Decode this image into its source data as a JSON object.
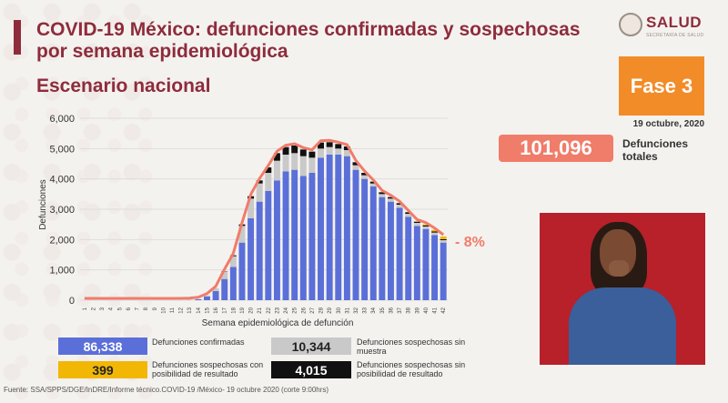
{
  "header": {
    "title": "COVID-19 México: defunciones confirmadas y sospechosas por semana epidemiológica",
    "subtitle": "Escenario nacional",
    "logo_text": "SALUD",
    "logo_subtext": "SECRETARÍA DE SALUD"
  },
  "side": {
    "phase": "Fase 3",
    "date": "19 octubre, 2020",
    "total_value": "101,096",
    "total_label": "Defunciones totales",
    "change_label": "- 8%"
  },
  "legend": {
    "confirmed_value": "86,338",
    "confirmed_label": "Defunciones confirmadas",
    "suspect_nosample_value": "10,344",
    "suspect_nosample_label": "Defunciones sospechosas sin muestra",
    "suspect_possible_value": "399",
    "suspect_possible_label": "Defunciones sospechosas con posibilidad de resultado",
    "suspect_impossible_value": "4,015",
    "suspect_impossible_label": "Defunciones sospechosas sin posibilidad de resultado"
  },
  "footer": "Fuente: SSA/SPPS/DGE/InDRE/Informe técnico.COVID-19 /México- 19 octubre 2020 (corte 9:00hrs)",
  "colors": {
    "confirmed": "#5a6fd8",
    "no_sample": "#c9c9c9",
    "impossible": "#111111",
    "possible": "#f2b705",
    "total_line": "#f07c6a",
    "title": "#8e2c3c"
  },
  "chart_data": {
    "type": "bar",
    "stacked": true,
    "xlabel": "Semana epidemiológica de defunción",
    "ylabel": "Defunciones",
    "ylim": [
      0,
      6000
    ],
    "yticks": [
      0,
      1000,
      2000,
      3000,
      4000,
      5000,
      6000
    ],
    "ytick_labels": [
      "0",
      "1,000",
      "2,000",
      "3,000",
      "4,000",
      "5,000",
      "6,000"
    ],
    "categories": [
      "1",
      "2",
      "3",
      "4",
      "5",
      "6",
      "7",
      "8",
      "9",
      "10",
      "11",
      "12",
      "13",
      "14",
      "15",
      "16",
      "17",
      "18",
      "19",
      "20",
      "21",
      "22",
      "23",
      "24",
      "25",
      "26",
      "27",
      "28",
      "29",
      "30",
      "31",
      "32",
      "33",
      "34",
      "35",
      "36",
      "37",
      "38",
      "39",
      "40",
      "41",
      "42"
    ],
    "series": [
      {
        "name": "Defunciones confirmadas",
        "values": [
          0,
          0,
          0,
          0,
          0,
          0,
          0,
          0,
          0,
          0,
          0,
          0,
          5,
          30,
          120,
          300,
          700,
          1100,
          1900,
          2700,
          3250,
          3600,
          3950,
          4250,
          4300,
          4100,
          4200,
          4700,
          4800,
          4800,
          4750,
          4300,
          4000,
          3750,
          3400,
          3250,
          3050,
          2750,
          2450,
          2350,
          2150,
          1900
        ]
      },
      {
        "name": "Defunciones sospechosas sin muestra",
        "values": [
          0,
          0,
          0,
          0,
          0,
          0,
          0,
          0,
          0,
          0,
          0,
          0,
          0,
          10,
          40,
          100,
          250,
          350,
          550,
          650,
          600,
          600,
          650,
          550,
          550,
          650,
          500,
          300,
          250,
          200,
          200,
          150,
          120,
          100,
          100,
          100,
          100,
          100,
          100,
          80,
          80,
          80
        ]
      },
      {
        "name": "Defunciones sospechosas sin posibilidad de resultado",
        "values": [
          0,
          0,
          0,
          0,
          0,
          0,
          0,
          0,
          0,
          0,
          0,
          0,
          0,
          0,
          0,
          0,
          10,
          30,
          50,
          80,
          100,
          180,
          250,
          250,
          250,
          220,
          200,
          200,
          160,
          150,
          120,
          100,
          80,
          60,
          60,
          50,
          50,
          50,
          40,
          40,
          40,
          30
        ]
      },
      {
        "name": "Defunciones sospechosas con posibilidad de resultado",
        "values": [
          0,
          0,
          0,
          0,
          0,
          0,
          0,
          0,
          0,
          0,
          0,
          0,
          0,
          0,
          0,
          0,
          0,
          0,
          0,
          0,
          0,
          0,
          0,
          0,
          0,
          0,
          0,
          0,
          0,
          0,
          0,
          0,
          0,
          0,
          0,
          0,
          0,
          0,
          10,
          30,
          50,
          90
        ]
      }
    ]
  }
}
